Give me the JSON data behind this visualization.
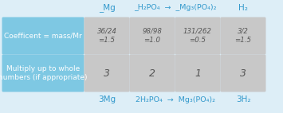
{
  "bg_color": "#ddeef7",
  "cell_bg_gray": "#c8c8c8",
  "cell_bg_blue": "#7ec8e3",
  "header_text_color": "#3399cc",
  "body_text_color": "#555555",
  "bottom_text_color": "#3399cc",
  "row_labels": [
    "Coefficent = mass/Mr",
    "Multiply up to whole\nnumbers (if appropriate)"
  ],
  "coeff_values": [
    "36/24\n=1.5",
    "98/98\n=1.0",
    "131/262\n=0.5",
    "3/2\n=1.5"
  ],
  "mult_values": [
    "3",
    "2",
    "1",
    "3"
  ],
  "col_headers_left": "_Mg",
  "col_headers_mid": "_H₂PO₄  →  _Mg₃(PO₄)₂",
  "col_headers_right": "H₂",
  "bottom_left": "3Mg",
  "bottom_mid": "2H₂PO₄  →  Mg₃(PO₄)₂",
  "bottom_right": "3H₂"
}
